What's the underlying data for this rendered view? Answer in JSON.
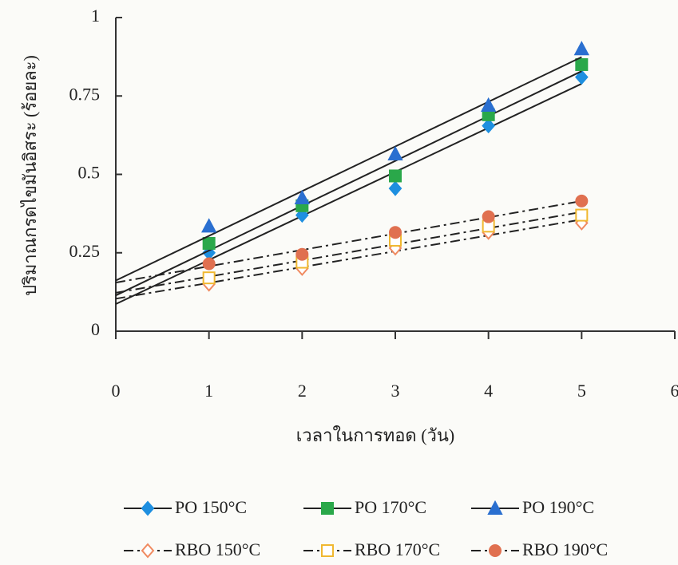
{
  "chart_data": {
    "type": "scatter",
    "y_label": "ปริมาณกรดไขมันอิสระ (ร้อยละ)",
    "x_label": "เวลาในการทอด (วัน)",
    "xlim": [
      0,
      6
    ],
    "xticks": [
      0,
      1,
      2,
      3,
      4,
      5,
      6
    ],
    "ylim": [
      0,
      1
    ],
    "yticks": [
      0,
      0.25,
      0.5,
      0.75,
      1
    ],
    "trendline": true,
    "series": [
      {
        "name": "PO 150°C",
        "color": "#1e8fe0",
        "marker": "diamond",
        "filled": true,
        "dash": "solid",
        "x": [
          1,
          2,
          3,
          4,
          5
        ],
        "values": [
          0.25,
          0.37,
          0.455,
          0.655,
          0.81
        ]
      },
      {
        "name": "PO 170°C",
        "color": "#2aa84a",
        "marker": "square",
        "filled": true,
        "dash": "solid",
        "x": [
          1,
          2,
          3,
          4,
          5
        ],
        "values": [
          0.28,
          0.4,
          0.495,
          0.69,
          0.85
        ]
      },
      {
        "name": "PO 190°C",
        "color": "#2a6fd0",
        "marker": "triangle",
        "filled": true,
        "dash": "solid",
        "x": [
          1,
          2,
          3,
          4,
          5
        ],
        "values": [
          0.335,
          0.425,
          0.565,
          0.72,
          0.9
        ]
      },
      {
        "name": "RBO 150°C",
        "color": "#f08a60",
        "marker": "diamond",
        "filled": false,
        "dash": "dashdot",
        "x": [
          1,
          2,
          3,
          4,
          5
        ],
        "values": [
          0.15,
          0.2,
          0.265,
          0.315,
          0.345
        ]
      },
      {
        "name": "RBO 170°C",
        "color": "#f0b830",
        "marker": "square",
        "filled": false,
        "dash": "dashdot",
        "x": [
          1,
          2,
          3,
          4,
          5
        ],
        "values": [
          0.17,
          0.22,
          0.29,
          0.335,
          0.37
        ]
      },
      {
        "name": "RBO 190°C",
        "color": "#e07050",
        "marker": "circle",
        "filled": true,
        "dash": "dashdot",
        "x": [
          1,
          2,
          3,
          4,
          5
        ],
        "values": [
          0.215,
          0.245,
          0.315,
          0.365,
          0.415
        ]
      }
    ]
  }
}
